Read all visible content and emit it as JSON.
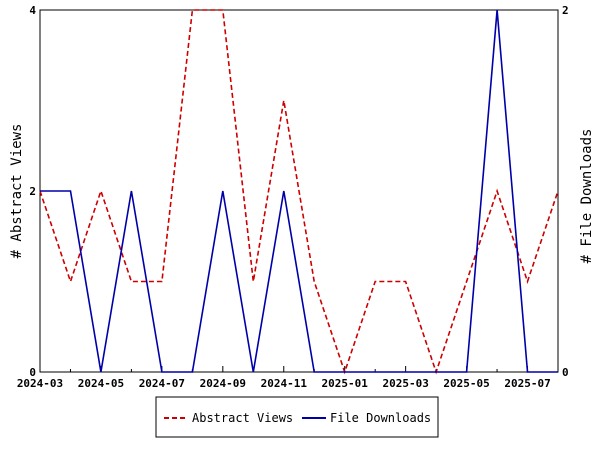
{
  "chart_data": {
    "type": "line",
    "x": [
      "2024-03",
      "2024-04",
      "2024-05",
      "2024-06",
      "2024-07",
      "2024-08",
      "2024-09",
      "2024-10",
      "2024-11",
      "2024-12",
      "2025-01",
      "2025-02",
      "2025-03",
      "2025-04",
      "2025-05",
      "2025-06",
      "2025-07",
      "2025-08"
    ],
    "x_tick_labels": [
      "2024-03",
      "2024-05",
      "2024-07",
      "2024-09",
      "2024-11",
      "2025-01",
      "2025-03",
      "2025-05",
      "2025-07"
    ],
    "series": [
      {
        "name": "Abstract Views",
        "axis": "left",
        "color": "#cc0000",
        "style": "dashed",
        "values": [
          2,
          1,
          2,
          1,
          1,
          4,
          4,
          1,
          3,
          1,
          0,
          1,
          1,
          0,
          1,
          2,
          1,
          2
        ]
      },
      {
        "name": "File Downloads",
        "axis": "right",
        "color": "#0000aa",
        "style": "solid",
        "values": [
          1,
          1,
          0,
          1,
          0,
          0,
          1,
          0,
          1,
          0,
          0,
          0,
          0,
          0,
          0,
          2,
          0,
          0
        ]
      }
    ],
    "ylabel": "# Abstract Views",
    "ylabel_right": "# File Downloads",
    "ylim": [
      0,
      4
    ],
    "ylim_right": [
      0,
      2
    ],
    "y_ticks": [
      "0",
      "2",
      "4"
    ],
    "y_ticks_right": [
      "0",
      "2"
    ],
    "grid": false,
    "legend_position": "bottom"
  }
}
